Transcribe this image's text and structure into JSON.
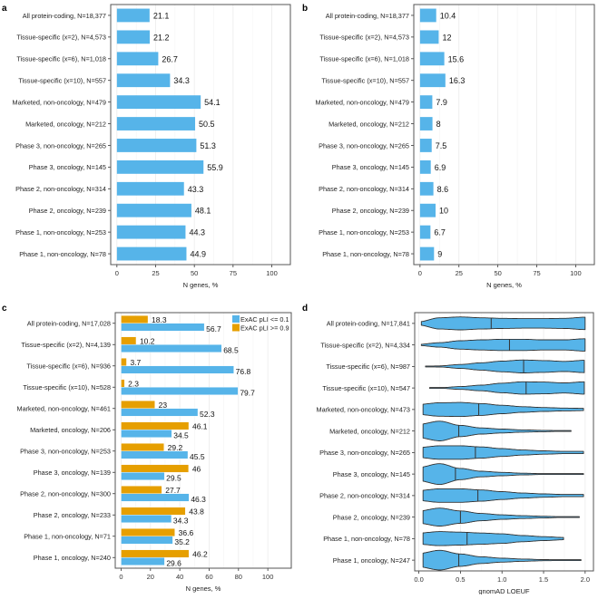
{
  "colors": {
    "blue": "#56b4e9",
    "orange": "#e69f00",
    "frame": "#555555",
    "grid": "#ebebeb"
  },
  "chart_data": [
    {
      "panel": "a",
      "type": "bar",
      "orientation": "horizontal",
      "xlabel": "N genes, %",
      "xlim": [
        -4,
        112
      ],
      "xticks": [
        0,
        25,
        50,
        75,
        100
      ],
      "categories": [
        "All protein-coding, N=18,377",
        "Tissue-specific (x=2), N=4,573",
        "Tissue-specific (x=6), N=1,018",
        "Tissue-specific (x=10), N=557",
        "Marketed, non-oncology, N=479",
        "Marketed, oncology, N=212",
        "Phase 3, non-oncology, N=265",
        "Phase 3, oncology, N=145",
        "Phase 2, non-oncology, N=314",
        "Phase 2, oncology, N=239",
        "Phase 1, non-oncology, N=253",
        "Phase 1, non-oncology, N=78"
      ],
      "values": [
        21.1,
        21.2,
        26.7,
        34.3,
        54.1,
        50.5,
        51.3,
        55.9,
        43.3,
        48.1,
        44.3,
        44.9
      ],
      "labels": [
        "21.1",
        "21.2",
        "26.7",
        "34.3",
        "54.1",
        "50.5",
        "51.3",
        "55.9",
        "43.3",
        "48.1",
        "44.3",
        "44.9"
      ]
    },
    {
      "panel": "b",
      "type": "bar",
      "orientation": "horizontal",
      "xlabel": "N genes, %",
      "xlim": [
        -4,
        112
      ],
      "xticks": [
        0,
        25,
        50,
        75,
        100
      ],
      "categories": [
        "All protein-coding, N=18,377",
        "Tissue-specific (x=2), N=4,573",
        "Tissue-specific (x=6), N=1,018",
        "Tissue-specific (x=10), N=557",
        "Marketed, non-oncology, N=479",
        "Marketed, oncology, N=212",
        "Phase 3, non-oncology, N=265",
        "Phase 3, oncology, N=145",
        "Phase 2, non-oncology, N=314",
        "Phase 2, oncology, N=239",
        "Phase 1, non-oncology, N=253",
        "Phase 1, non-oncology, N=78"
      ],
      "values": [
        10.4,
        12,
        15.6,
        16.3,
        7.9,
        8,
        7.5,
        6.9,
        8.6,
        10,
        6.7,
        9
      ],
      "labels": [
        "10.4",
        "12",
        "15.6",
        "16.3",
        "7.9",
        "8",
        "7.5",
        "6.9",
        "8.6",
        "10",
        "6.7",
        "9"
      ]
    },
    {
      "panel": "c",
      "type": "bar",
      "orientation": "horizontal",
      "grouped": true,
      "xlabel": "N genes, %",
      "xlim": [
        -4,
        116
      ],
      "xticks": [
        0,
        20,
        40,
        60,
        80,
        100
      ],
      "legend_position": "top-right",
      "categories": [
        "All protein-coding, N=17,028",
        "Tissue-specific (x=2), N=4,139",
        "Tissue-specific (x=6), N=936",
        "Tissue-specific (x=10), N=528",
        "Marketed, non-oncology, N=461",
        "Marketed, oncology, N=206",
        "Phase 3, non-oncology, N=253",
        "Phase 3, oncology, N=139",
        "Phase 2, non-oncology, N=300",
        "Phase 2, oncology, N=233",
        "Phase 1, non-oncology, N=71",
        "Phase 1, oncology, N=240"
      ],
      "series": [
        {
          "name": "ExAC pLI <= 0.1",
          "color": "#56b4e9",
          "values": [
            56.7,
            68.5,
            76.8,
            79.7,
            52.3,
            34.5,
            45.5,
            29.5,
            46.3,
            34.3,
            35.2,
            29.6
          ],
          "labels": [
            "56.7",
            "68.5",
            "76.8",
            "79.7",
            "52.3",
            "34.5",
            "45.5",
            "29.5",
            "46.3",
            "34.3",
            "35.2",
            "29.6"
          ]
        },
        {
          "name": "ExAC pLI >= 0.9",
          "color": "#e69f00",
          "values": [
            18.3,
            10.2,
            3.7,
            2.3,
            23,
            46.1,
            29.2,
            46,
            27.7,
            43.8,
            36.6,
            46.2
          ],
          "labels": [
            "18.3",
            "10.2",
            "3.7",
            "2.3",
            "23",
            "46.1",
            "29.2",
            "46",
            "27.7",
            "43.8",
            "36.6",
            "46.2"
          ]
        }
      ]
    },
    {
      "panel": "d",
      "type": "violin",
      "orientation": "horizontal",
      "xlabel": "gnomAD LOEUF",
      "xlim": [
        -0.05,
        2.1
      ],
      "xticks": [
        0.0,
        0.5,
        1.0,
        1.5,
        2.0
      ],
      "xtick_labels": [
        "0.0",
        "0.5",
        "1.0",
        "1.5",
        "2.0"
      ],
      "density_grid": [
        0,
        0.25,
        0.5,
        0.75,
        1.0,
        1.25,
        1.5,
        1.75,
        2.0
      ],
      "categories": [
        "All protein-coding, N=17,841",
        "Tissue-specific (x=2), N=4,334",
        "Tissue-specific (x=6), N=987",
        "Tissue-specific (x=10), N=547",
        "Marketed, non-oncology, N=473",
        "Marketed, oncology, N=212",
        "Phase 3, non-oncology, N=265",
        "Phase 3, oncology, N=145",
        "Phase 2, non-oncology, N=314",
        "Phase 2, oncology, N=239",
        "Phase 1, non-oncology, N=78",
        "Phase 1, oncology, N=247"
      ],
      "violins": [
        {
          "min": 0.03,
          "max": 2.0,
          "median": 0.87,
          "density": [
            0.3,
            1.0,
            1.15,
            1.0,
            0.9,
            0.85,
            0.85,
            0.9,
            1.1
          ]
        },
        {
          "min": 0.03,
          "max": 2.0,
          "median": 1.09,
          "density": [
            0.1,
            0.4,
            0.75,
            0.9,
            1.0,
            1.0,
            0.9,
            0.9,
            1.1
          ]
        },
        {
          "min": 0.08,
          "max": 1.99,
          "median": 1.26,
          "density": [
            0,
            0.1,
            0.35,
            0.65,
            0.95,
            1.15,
            1.05,
            0.9,
            1.1
          ]
        },
        {
          "min": 0.13,
          "max": 1.99,
          "median": 1.29,
          "density": [
            0,
            0.05,
            0.25,
            0.5,
            0.85,
            1.1,
            1.05,
            0.9,
            1.1
          ]
        },
        {
          "min": 0.05,
          "max": 1.98,
          "median": 0.72,
          "density": [
            0.9,
            1.2,
            1.25,
            1.05,
            0.75,
            0.5,
            0.35,
            0.25,
            0.2
          ]
        },
        {
          "min": 0.05,
          "max": 1.83,
          "median": 0.48,
          "density": [
            1.2,
            1.75,
            1.0,
            0.55,
            0.35,
            0.2,
            0.12,
            0.05,
            0
          ]
        },
        {
          "min": 0.05,
          "max": 1.98,
          "median": 0.68,
          "density": [
            0.9,
            1.2,
            1.2,
            1.0,
            0.7,
            0.45,
            0.3,
            0.2,
            0.2
          ]
        },
        {
          "min": 0.05,
          "max": 1.98,
          "median": 0.44,
          "density": [
            1.2,
            1.85,
            1.0,
            0.5,
            0.3,
            0.15,
            0.07,
            0.05,
            0.05
          ]
        },
        {
          "min": 0.05,
          "max": 1.98,
          "median": 0.71,
          "density": [
            0.9,
            1.2,
            1.2,
            1.0,
            0.7,
            0.45,
            0.3,
            0.2,
            0.2
          ]
        },
        {
          "min": 0.05,
          "max": 1.93,
          "median": 0.5,
          "density": [
            1.1,
            1.6,
            1.1,
            0.65,
            0.4,
            0.25,
            0.15,
            0.05,
            0
          ]
        },
        {
          "min": 0.05,
          "max": 1.74,
          "median": 0.58,
          "density": [
            1.0,
            1.25,
            1.15,
            1.0,
            0.85,
            0.55,
            0.35,
            0.2,
            0
          ]
        },
        {
          "min": 0.05,
          "max": 1.95,
          "median": 0.48,
          "density": [
            1.2,
            1.75,
            1.1,
            0.6,
            0.35,
            0.2,
            0.1,
            0.05,
            0
          ]
        }
      ]
    }
  ]
}
